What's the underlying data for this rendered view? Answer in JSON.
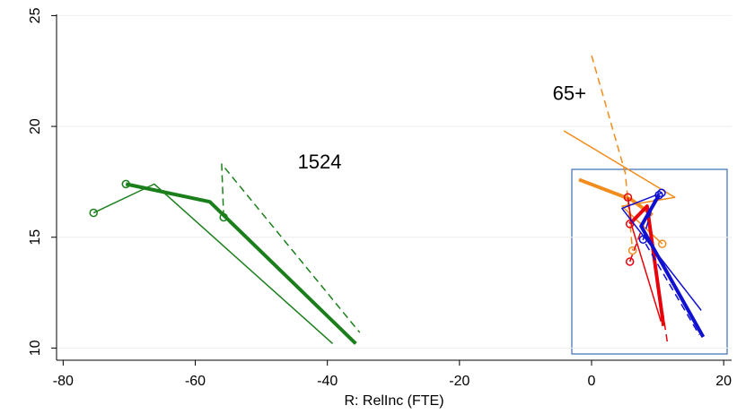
{
  "chart_data": {
    "type": "line",
    "xlabel": "R: RelInc (FTE)",
    "xlim": [
      -81,
      21.2
    ],
    "ylim": [
      9.45,
      25.3
    ],
    "xticks": [
      -80,
      -60,
      -40,
      -20,
      0,
      20
    ],
    "yticks": [
      10,
      15,
      20,
      25
    ],
    "grid": true,
    "annotations": [
      {
        "text": "1524",
        "x": -44.5,
        "y": 18.1
      },
      {
        "text": "65+",
        "x": -5.9,
        "y": 21.2
      }
    ],
    "series": [
      {
        "color": "#1a7f1a",
        "width": 1.5,
        "dash": false,
        "markers": [
          0
        ],
        "x": [
          -75.4,
          -66.2,
          -39.2
        ],
        "values": [
          16.1,
          17.4,
          10.2
        ]
      },
      {
        "color": "#1a7f1a",
        "width": 4,
        "dash": false,
        "markers": [
          0
        ],
        "x": [
          -70.5,
          -57.8,
          -35.7
        ],
        "values": [
          17.4,
          16.6,
          10.2
        ]
      },
      {
        "color": "#1a7f1a",
        "width": 1.5,
        "dash": true,
        "markers": [
          0
        ],
        "x": [
          -55.7,
          -56.0,
          -35.1
        ],
        "values": [
          15.9,
          18.3,
          10.7
        ]
      },
      {
        "color": "#f28c1c",
        "width": 1.5,
        "dash": false,
        "markers": [
          3
        ],
        "x": [
          -4.2,
          12.6,
          4.6,
          10.7
        ],
        "values": [
          19.8,
          16.8,
          16.4,
          14.7
        ]
      },
      {
        "color": "#f28c1c",
        "width": 4,
        "dash": false,
        "markers": [],
        "x": [
          -1.9,
          6.0,
          9.2
        ],
        "values": [
          17.6,
          16.7,
          16.0
        ]
      },
      {
        "color": "#f28c1c",
        "width": 1.5,
        "dash": true,
        "markers": [
          2
        ],
        "x": [
          0.0,
          5.1,
          6.2
        ],
        "values": [
          23.2,
          17.9,
          14.4
        ]
      },
      {
        "color": "#e8000b",
        "width": 1.5,
        "dash": false,
        "markers": [
          0
        ],
        "x": [
          5.5,
          6.1,
          10.5
        ],
        "values": [
          16.8,
          15.5,
          11.2
        ]
      },
      {
        "color": "#e8000b",
        "width": 4,
        "dash": false,
        "markers": [
          0
        ],
        "x": [
          5.8,
          8.4,
          10.9
        ],
        "values": [
          15.6,
          16.4,
          11.0
        ]
      },
      {
        "color": "#e8000b",
        "width": 1.5,
        "dash": true,
        "markers": [
          0
        ],
        "x": [
          5.8,
          8.5,
          11.5
        ],
        "values": [
          13.9,
          16.1,
          10.2
        ]
      },
      {
        "color": "#1010d0",
        "width": 1.5,
        "dash": false,
        "markers": [
          0
        ],
        "x": [
          10.6,
          4.6,
          16.6
        ],
        "values": [
          17.0,
          16.3,
          11.7
        ]
      },
      {
        "color": "#1010d0",
        "width": 4,
        "dash": false,
        "markers": [
          0
        ],
        "x": [
          10.2,
          7.5,
          16.9
        ],
        "values": [
          16.9,
          15.5,
          10.5
        ]
      },
      {
        "color": "#1010d0",
        "width": 1.5,
        "dash": true,
        "markers": [
          1
        ],
        "x": [
          9.5,
          7.8,
          16.3
        ],
        "values": [
          16.7,
          14.9,
          10.6
        ]
      }
    ]
  }
}
